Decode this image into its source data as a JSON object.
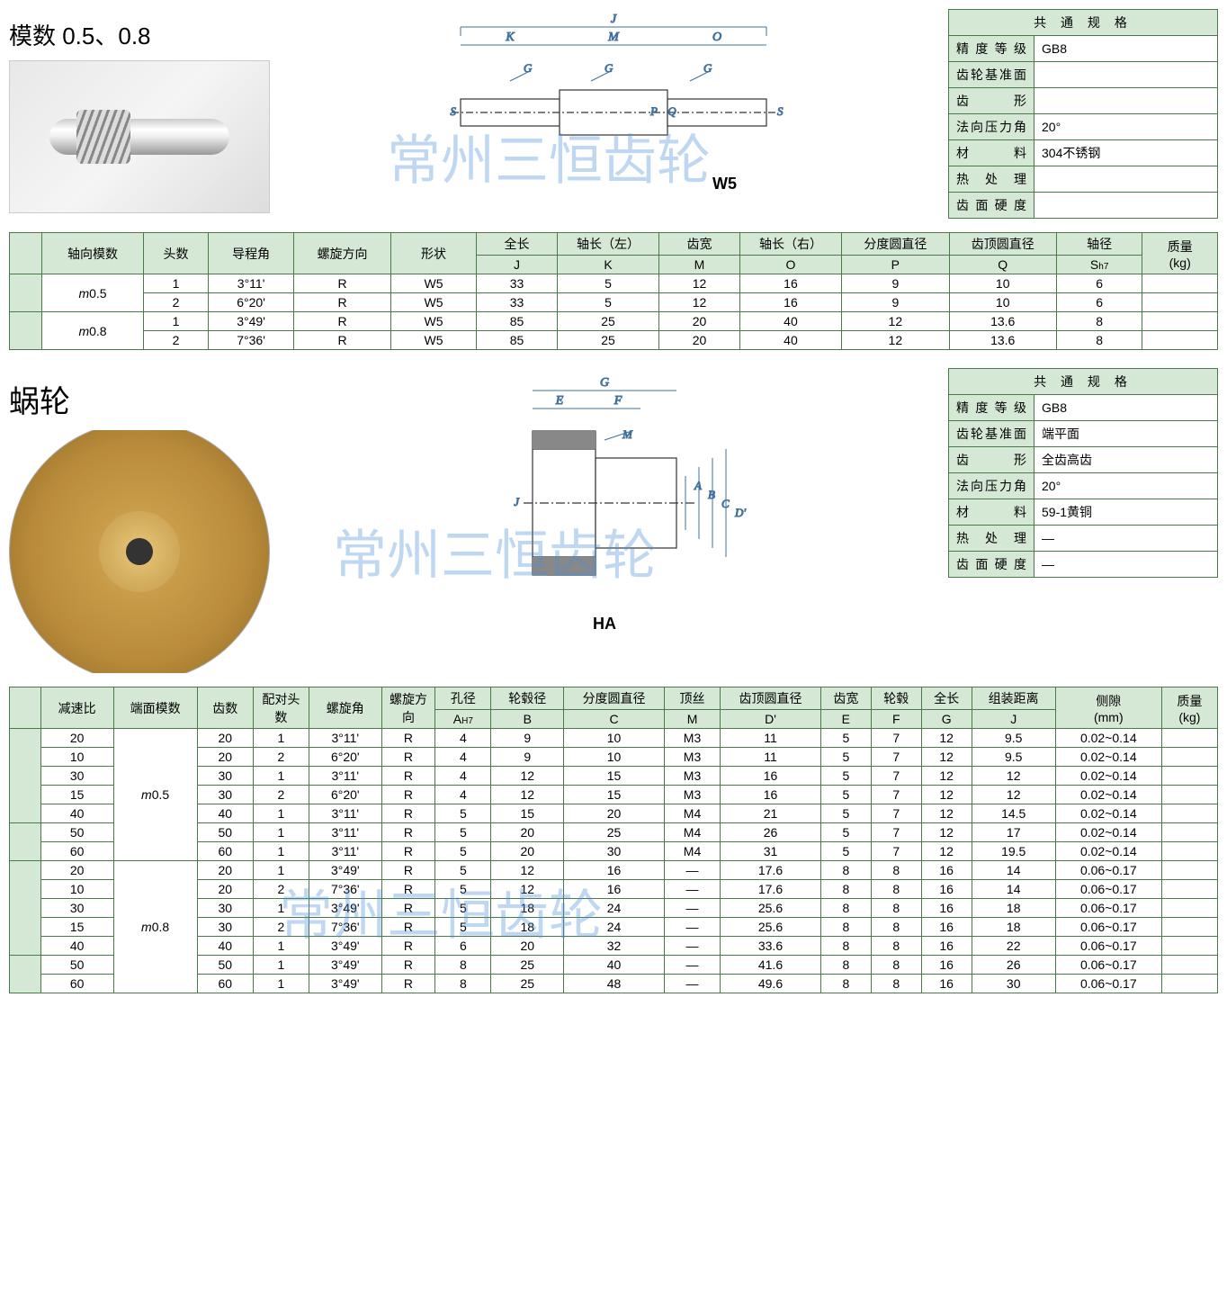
{
  "watermark": "常州三恒齿轮",
  "section1": {
    "title": "模数 0.5、0.8",
    "diagram_label": "W5",
    "spec_header": "共 通 规 格",
    "spec_rows": [
      {
        "k": "精度等级",
        "v": "GB8"
      },
      {
        "k": "齿轮基准面",
        "v": ""
      },
      {
        "k": "齿　　形",
        "v": ""
      },
      {
        "k": "法向压力角",
        "v": "20°"
      },
      {
        "k": "材　　料",
        "v": "304不锈钢"
      },
      {
        "k": "热 处 理",
        "v": ""
      },
      {
        "k": "齿面硬度",
        "v": ""
      }
    ],
    "headers_top": [
      "",
      "轴向模数",
      "头数",
      "导程角",
      "螺旋方向",
      "形状",
      "全长",
      "轴长（左）",
      "齿宽",
      "轴长（右）",
      "分度圆直径",
      "齿顶圆直径",
      "轴径",
      "质量"
    ],
    "headers_sub": [
      "J",
      "K",
      "M",
      "O",
      "P",
      "Q",
      "Sh7",
      "(kg)"
    ],
    "rows": [
      {
        "mod": "m0.5",
        "data": [
          [
            "1",
            "3°11'",
            "R",
            "W5",
            "33",
            "5",
            "12",
            "16",
            "9",
            "10",
            "6",
            ""
          ],
          [
            "2",
            "6°20'",
            "R",
            "W5",
            "33",
            "5",
            "12",
            "16",
            "9",
            "10",
            "6",
            ""
          ]
        ]
      },
      {
        "mod": "m0.8",
        "data": [
          [
            "1",
            "3°49'",
            "R",
            "W5",
            "85",
            "25",
            "20",
            "40",
            "12",
            "13.6",
            "8",
            ""
          ],
          [
            "2",
            "7°36'",
            "R",
            "W5",
            "85",
            "25",
            "20",
            "40",
            "12",
            "13.6",
            "8",
            ""
          ]
        ]
      }
    ]
  },
  "section2": {
    "title": "蜗轮",
    "diagram_label": "HA",
    "spec_header": "共 通 规 格",
    "spec_rows": [
      {
        "k": "精度等级",
        "v": "GB8"
      },
      {
        "k": "齿轮基准面",
        "v": "端平面"
      },
      {
        "k": "齿　　形",
        "v": "全齿高齿"
      },
      {
        "k": "法向压力角",
        "v": "20°"
      },
      {
        "k": "材　　料",
        "v": "59-1黄铜"
      },
      {
        "k": "热 处 理",
        "v": "—"
      },
      {
        "k": "齿面硬度",
        "v": "—"
      }
    ],
    "headers_top": [
      "",
      "减速比",
      "端面模数",
      "齿数",
      "配对头数",
      "螺旋角",
      "螺旋方向",
      "孔径",
      "轮毂径",
      "分度圆直径",
      "顶丝",
      "齿顶圆直径",
      "齿宽",
      "轮毂",
      "全长",
      "组装距离",
      "侧隙",
      "质量"
    ],
    "headers_sub": [
      "AH7",
      "B",
      "C",
      "M",
      "D'",
      "E",
      "F",
      "G",
      "J",
      "(mm)",
      "(kg)"
    ],
    "groups": [
      {
        "mod": "m0.5",
        "blocks": [
          [
            [
              "20",
              "20",
              "1",
              "3°11'",
              "R",
              "4",
              "9",
              "10",
              "M3",
              "11",
              "5",
              "7",
              "12",
              "9.5",
              "0.02~0.14",
              ""
            ],
            [
              "10",
              "20",
              "2",
              "6°20'",
              "R",
              "4",
              "9",
              "10",
              "M3",
              "11",
              "5",
              "7",
              "12",
              "9.5",
              "0.02~0.14",
              ""
            ],
            [
              "30",
              "30",
              "1",
              "3°11'",
              "R",
              "4",
              "12",
              "15",
              "M3",
              "16",
              "5",
              "7",
              "12",
              "12",
              "0.02~0.14",
              ""
            ],
            [
              "15",
              "30",
              "2",
              "6°20'",
              "R",
              "4",
              "12",
              "15",
              "M3",
              "16",
              "5",
              "7",
              "12",
              "12",
              "0.02~0.14",
              ""
            ],
            [
              "40",
              "40",
              "1",
              "3°11'",
              "R",
              "5",
              "15",
              "20",
              "M4",
              "21",
              "5",
              "7",
              "12",
              "14.5",
              "0.02~0.14",
              ""
            ]
          ],
          [
            [
              "50",
              "50",
              "1",
              "3°11'",
              "R",
              "5",
              "20",
              "25",
              "M4",
              "26",
              "5",
              "7",
              "12",
              "17",
              "0.02~0.14",
              ""
            ],
            [
              "60",
              "60",
              "1",
              "3°11'",
              "R",
              "5",
              "20",
              "30",
              "M4",
              "31",
              "5",
              "7",
              "12",
              "19.5",
              "0.02~0.14",
              ""
            ]
          ]
        ]
      },
      {
        "mod": "m0.8",
        "blocks": [
          [
            [
              "20",
              "20",
              "1",
              "3°49'",
              "R",
              "5",
              "12",
              "16",
              "—",
              "17.6",
              "8",
              "8",
              "16",
              "14",
              "0.06~0.17",
              ""
            ],
            [
              "10",
              "20",
              "2",
              "7°36'",
              "R",
              "5",
              "12",
              "16",
              "—",
              "17.6",
              "8",
              "8",
              "16",
              "14",
              "0.06~0.17",
              ""
            ],
            [
              "30",
              "30",
              "1",
              "3°49'",
              "R",
              "5",
              "18",
              "24",
              "—",
              "25.6",
              "8",
              "8",
              "16",
              "18",
              "0.06~0.17",
              ""
            ],
            [
              "15",
              "30",
              "2",
              "7°36'",
              "R",
              "5",
              "18",
              "24",
              "—",
              "25.6",
              "8",
              "8",
              "16",
              "18",
              "0.06~0.17",
              ""
            ],
            [
              "40",
              "40",
              "1",
              "3°49'",
              "R",
              "6",
              "20",
              "32",
              "—",
              "33.6",
              "8",
              "8",
              "16",
              "22",
              "0.06~0.17",
              ""
            ]
          ],
          [
            [
              "50",
              "50",
              "1",
              "3°49'",
              "R",
              "8",
              "25",
              "40",
              "—",
              "41.6",
              "8",
              "8",
              "16",
              "26",
              "0.06~0.17",
              ""
            ],
            [
              "60",
              "60",
              "1",
              "3°49'",
              "R",
              "8",
              "25",
              "48",
              "—",
              "49.6",
              "8",
              "8",
              "16",
              "30",
              "0.06~0.17",
              ""
            ]
          ]
        ]
      }
    ]
  }
}
